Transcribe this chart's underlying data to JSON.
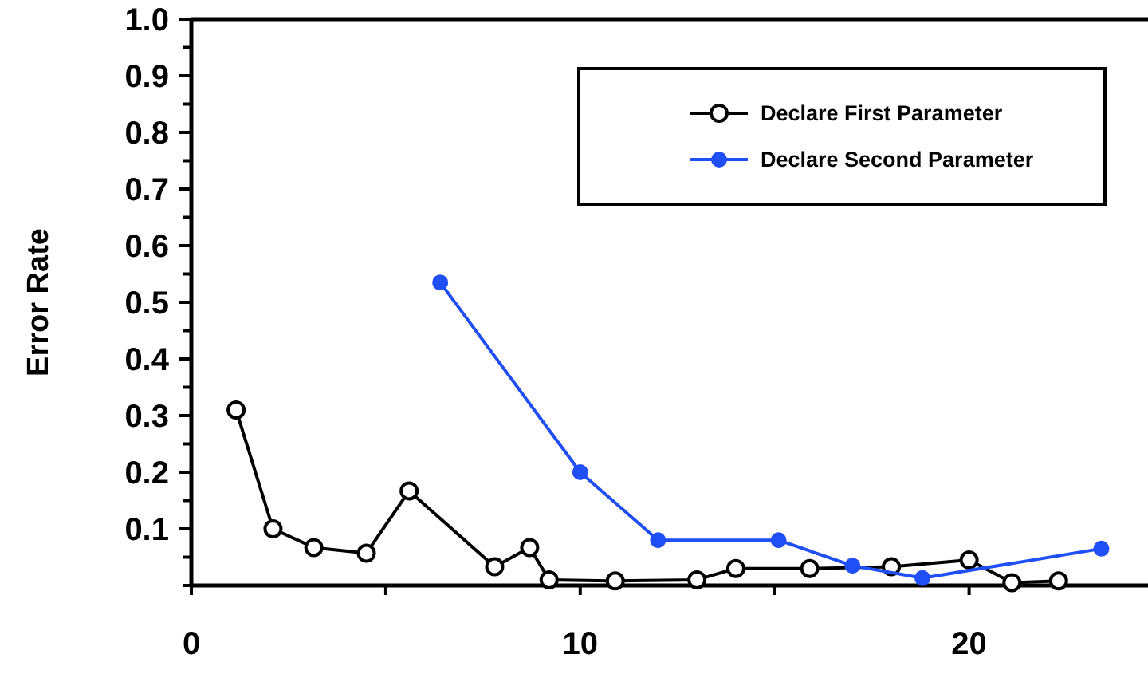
{
  "chart_data": {
    "type": "line",
    "ylabel": "Error Rate",
    "xlim": [
      0,
      24.6
    ],
    "ylim": [
      0,
      1
    ],
    "xticks": [
      0,
      {
        "value": 5,
        "label": null
      },
      10,
      {
        "value": 15,
        "label": null
      },
      20
    ],
    "yticks": [
      {
        "value": 0,
        "label": null
      },
      {
        "value": 0.05,
        "label": null
      },
      0.1,
      {
        "value": 0.15,
        "label": null
      },
      0.2,
      {
        "value": 0.25,
        "label": null
      },
      0.3,
      {
        "value": 0.35,
        "label": null
      },
      0.4,
      {
        "value": 0.45,
        "label": null
      },
      0.5,
      {
        "value": 0.55,
        "label": null
      },
      0.6,
      {
        "value": 0.65,
        "label": null
      },
      0.7,
      {
        "value": 0.75,
        "label": null
      },
      0.8,
      {
        "value": 0.85,
        "label": null
      },
      0.9,
      {
        "value": 0.95,
        "label": null
      },
      {
        "value": 1,
        "label": "1.0"
      }
    ],
    "legend": "top right",
    "grid": false,
    "line_style": "solid",
    "series": [
      {
        "name": "Declare First Parameter",
        "color": "#000000",
        "marker": "circle",
        "x": [
          1.15,
          2.1,
          3.15,
          4.5,
          5.6,
          7.8,
          8.7,
          9.2,
          10.9,
          13.0,
          14.0,
          15.9,
          18.0,
          20.0,
          21.1,
          22.3
        ],
        "values": [
          0.31,
          0.1,
          0.067,
          0.057,
          0.167,
          0.033,
          0.067,
          0.01,
          0.008,
          0.01,
          0.03,
          0.03,
          0.033,
          0.045,
          0.005,
          0.008
        ]
      },
      {
        "name": "Declare Second Parameter",
        "color": "#1f4ff5",
        "marker": "circle",
        "x": [
          6.4,
          10,
          12,
          15.1,
          17,
          18.8,
          23.4
        ],
        "values": [
          0.535,
          0.2,
          0.08,
          0.08,
          0.035,
          0.013,
          0.065
        ]
      }
    ]
  }
}
